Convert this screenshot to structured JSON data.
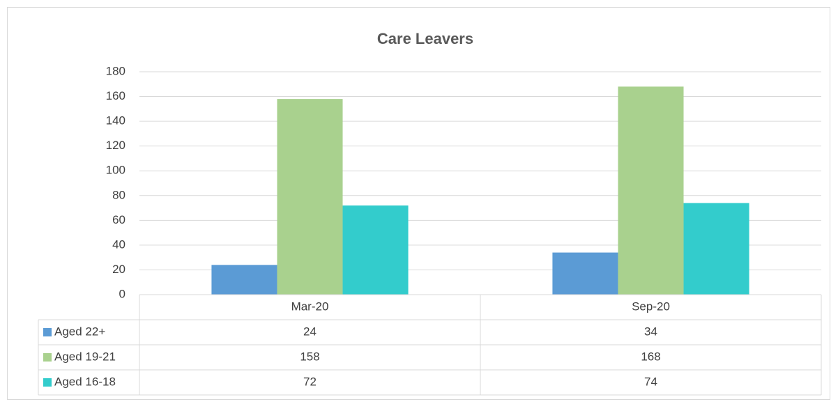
{
  "chart_data": {
    "type": "bar",
    "title": "Care Leavers",
    "categories": [
      "Mar-20",
      "Sep-20"
    ],
    "series": [
      {
        "name": "Aged 22+",
        "color": "#5b9bd5",
        "values": [
          24,
          34
        ]
      },
      {
        "name": "Aged 19-21",
        "color": "#a9d18e",
        "values": [
          158,
          168
        ]
      },
      {
        "name": "Aged 16-18",
        "color": "#33cccc",
        "values": [
          72,
          74
        ]
      }
    ],
    "ylim": [
      0,
      180
    ],
    "yticks": [
      0,
      20,
      40,
      60,
      80,
      100,
      120,
      140,
      160,
      180
    ],
    "grid": true
  }
}
